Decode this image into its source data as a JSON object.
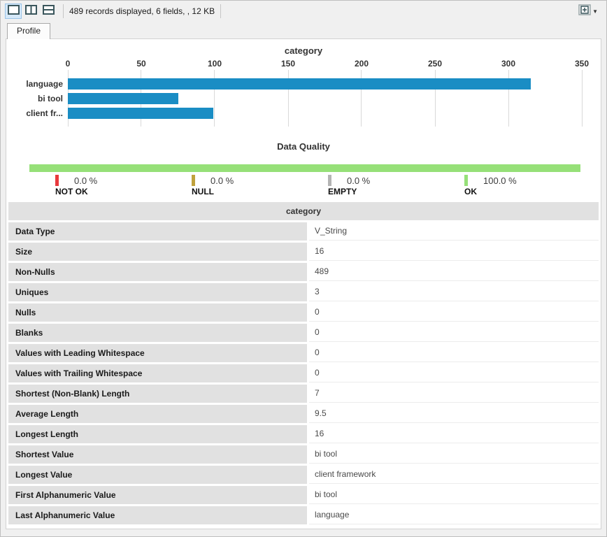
{
  "toolbar": {
    "status_text": "489 records displayed, 6 fields, , 12 KB"
  },
  "tab": {
    "label": "Profile"
  },
  "colors": {
    "bar_blue": "#1a8dc4",
    "ok_green": "#96e078",
    "not_ok_red": "#e8393d",
    "null_olive": "#c0a23c",
    "empty_gray": "#b4b4b4",
    "cell_gray": "#e1e1e1"
  },
  "chart_data": [
    {
      "type": "bar",
      "orientation": "horizontal",
      "title": "category",
      "categories": [
        "language",
        "bi tool",
        "client fr..."
      ],
      "values": [
        315,
        75,
        99
      ],
      "xlim": [
        0,
        350
      ],
      "xticks": [
        "0",
        "50",
        "100",
        "150",
        "200",
        "250",
        "300",
        "350"
      ],
      "bar_color": "#1a8dc4",
      "grid": true
    },
    {
      "type": "bar",
      "variant": "stacked-percent",
      "title": "Data Quality",
      "segments": [
        {
          "label": "NOT OK",
          "pct_text": "0.0 %",
          "value": 0.0,
          "color": "#e8393d"
        },
        {
          "label": "NULL",
          "pct_text": "0.0 %",
          "value": 0.0,
          "color": "#c0a23c"
        },
        {
          "label": "EMPTY",
          "pct_text": "0.0 %",
          "value": 0.0,
          "color": "#b4b4b4"
        },
        {
          "label": "OK",
          "pct_text": "100.0 %",
          "value": 100.0,
          "color": "#96e078"
        }
      ]
    }
  ],
  "profile_table": {
    "header": "category",
    "rows": [
      {
        "label": "Data Type",
        "value": "V_String"
      },
      {
        "label": "Size",
        "value": "16"
      },
      {
        "label": "Non-Nulls",
        "value": "489"
      },
      {
        "label": "Uniques",
        "value": "3"
      },
      {
        "label": "Nulls",
        "value": "0"
      },
      {
        "label": "Blanks",
        "value": "0"
      },
      {
        "label": "Values with Leading Whitespace",
        "value": "0"
      },
      {
        "label": "Values with Trailing Whitespace",
        "value": "0"
      },
      {
        "label": "Shortest (Non-Blank) Length",
        "value": "7"
      },
      {
        "label": "Average Length",
        "value": "9.5"
      },
      {
        "label": "Longest Length",
        "value": "16"
      },
      {
        "label": "Shortest Value",
        "value": "bi tool"
      },
      {
        "label": "Longest Value",
        "value": "client framework"
      },
      {
        "label": "First Alphanumeric Value",
        "value": "bi tool"
      },
      {
        "label": "Last Alphanumeric Value",
        "value": "language"
      }
    ]
  }
}
